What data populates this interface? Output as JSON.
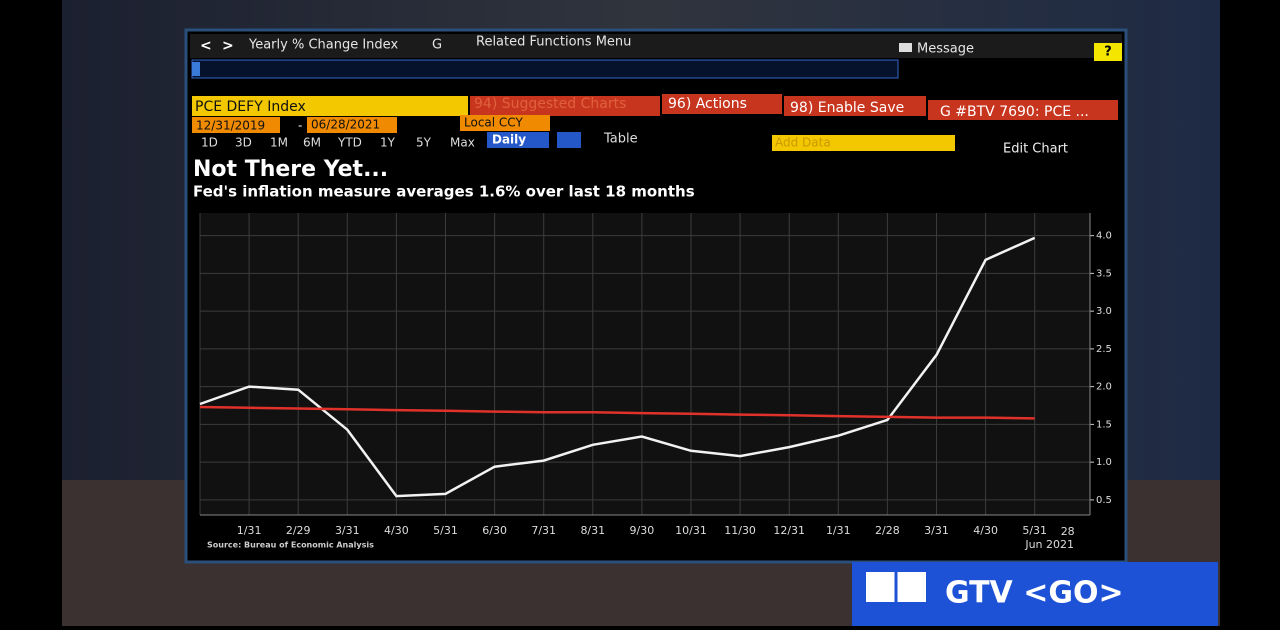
{
  "toolbar": {
    "back": "<",
    "forward": ">",
    "function": "Yearly % Change Index",
    "graph": "G",
    "related": "Related Functions Menu",
    "message": "Message",
    "help": "?"
  },
  "security": {
    "ticker": "PCE DEFY Index",
    "suggested": "94) Suggested Charts",
    "actions": "96) Actions",
    "save": "98) Enable Save",
    "page_title": "G #BTV 7690: PCE ..."
  },
  "controls": {
    "start_date": "12/31/2019",
    "date_separator": "-",
    "end_date": "06/28/2021",
    "currency": "Local CCY",
    "periods": [
      "1D",
      "3D",
      "1M",
      "6M",
      "YTD",
      "1Y",
      "5Y",
      "Max"
    ],
    "frequency": "Daily",
    "table": "Table",
    "add_data": "Add Data",
    "edit_chart": "Edit Chart"
  },
  "chart_data": {
    "type": "line",
    "title": "Not There Yet...",
    "subtitle": "Fed's inflation measure averages 1.6% over last 18 months",
    "source": "Source: Bureau of Economic Analysis",
    "categories": [
      null,
      "1/31",
      "2/29",
      "3/31",
      "4/30",
      "5/31",
      "6/30",
      "7/31",
      "8/31",
      "9/30",
      "10/31",
      "11/30",
      "12/31",
      "1/31",
      "2/28",
      "3/31",
      "4/30",
      "5/31"
    ],
    "x_end_label": "28",
    "x_end_sublabel": "Jun 2021",
    "series": [
      {
        "color": "#f2f2f2",
        "values": [
          1.77,
          2.0,
          1.96,
          1.43,
          0.55,
          0.58,
          0.94,
          1.02,
          1.23,
          1.34,
          1.15,
          1.08,
          1.2,
          1.35,
          1.56,
          2.42,
          3.68,
          3.97
        ]
      },
      {
        "color": "#e0312b",
        "values": [
          1.73,
          1.72,
          1.71,
          1.7,
          1.69,
          1.68,
          1.67,
          1.66,
          1.66,
          1.65,
          1.64,
          1.63,
          1.62,
          1.61,
          1.6,
          1.59,
          1.59,
          1.58
        ]
      }
    ],
    "ylim": [
      0.3,
      4.3
    ],
    "yticks": [
      0.5,
      {
        "value": 1,
        "label": "1.0"
      },
      1.5,
      {
        "value": 2,
        "label": "2.0"
      },
      2.5,
      {
        "value": 3,
        "label": "3.0"
      },
      3.5,
      {
        "value": 4,
        "label": "4.0"
      }
    ],
    "grid": true
  },
  "overlay": {
    "label": "GTV <GO>"
  }
}
